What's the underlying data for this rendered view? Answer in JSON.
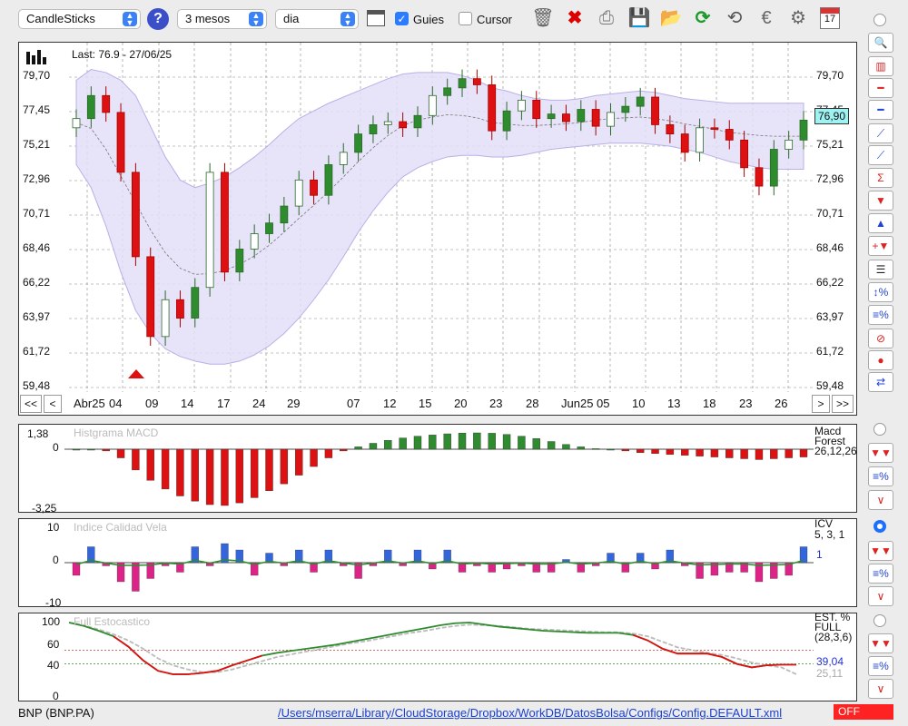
{
  "toolbar": {
    "chart_type": "CandleSticks",
    "period": "3 mesos",
    "interval": "dia",
    "guides_label": "Guies",
    "guides_checked": true,
    "cursor_label": "Cursor",
    "cursor_checked": false,
    "calendar_day": "17"
  },
  "main_chart": {
    "last_label": "Last: 76.9 - 27/06/25",
    "current_price": "76,90",
    "y_labels": [
      "79,70",
      "77,45",
      "75,21",
      "72,96",
      "70,71",
      "68,46",
      "66,22",
      "63,97",
      "61,72",
      "59,48"
    ],
    "x_labels": [
      "Abr25",
      "04",
      "09",
      "14",
      "17",
      "24",
      "29",
      "07",
      "12",
      "15",
      "20",
      "23",
      "28",
      "Jun25",
      "05",
      "10",
      "13",
      "18",
      "23",
      "26"
    ],
    "nav": {
      "first": "<<",
      "prev": "<",
      "next": ">",
      "last": ">>"
    }
  },
  "macd": {
    "title": "Histgrama MACD",
    "y_labels": [
      "1,38",
      "0",
      "-3,25"
    ],
    "legend_line1": "Macd",
    "legend_line2": "Forest",
    "legend_line3": "26,12,26"
  },
  "icv": {
    "title": "Indice Calidad Vela",
    "y_labels": [
      "10",
      "0",
      "-10"
    ],
    "legend_line1": "ICV",
    "legend_line2": "5, 3, 1",
    "value": "1"
  },
  "stoch": {
    "title": "Full Estocastico",
    "y_labels": [
      "100",
      "60",
      "40",
      "0"
    ],
    "legend_line1": "EST. %",
    "legend_line2": "FULL",
    "legend_line3": "(28,3,6)",
    "value_k": "39,04",
    "value_d": "25,11"
  },
  "status": {
    "ticker": "BNP (BNP.PA)",
    "config_path": "/Users/mserra/Library/CloudStorage/Dropbox/WorkDB/DatosBolsa/Configs/Config.DEFAULT.xml",
    "mode": "OFF"
  },
  "colors": {
    "up": "#2e8b2e",
    "down": "#dd1111",
    "band": "#e3def7",
    "blue": "#3366dd",
    "pink": "#dd2288"
  },
  "chart_data": {
    "type": "candlestick",
    "series_close_approx": [
      77.0,
      78.5,
      77.4,
      73.5,
      68.0,
      62.8,
      65.2,
      64.0,
      66.0,
      73.5,
      67.0,
      68.5,
      69.5,
      70.2,
      71.3,
      73.0,
      72.0,
      74.0,
      74.8,
      76.0,
      76.6,
      76.8,
      76.4,
      77.2,
      78.5,
      79.0,
      79.6,
      79.2,
      76.2,
      77.5,
      78.2,
      77.0,
      77.3,
      76.8,
      77.6,
      76.5,
      77.4,
      77.8,
      78.4,
      76.6,
      76.0,
      74.8,
      76.4,
      76.3,
      75.6,
      73.8,
      72.6,
      75.0,
      75.6,
      76.9
    ],
    "y_range": [
      59.48,
      79.7
    ]
  }
}
